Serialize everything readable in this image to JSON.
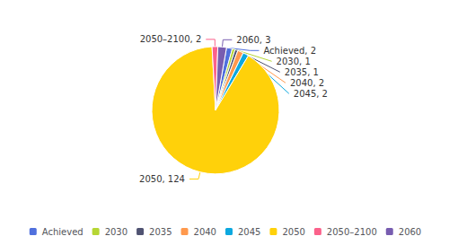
{
  "chart_data": {
    "type": "pie",
    "categories": [
      "Achieved",
      "2030",
      "2035",
      "2040",
      "2045",
      "2050",
      "2050–2100",
      "2060"
    ],
    "values": [
      2,
      1,
      1,
      2,
      2,
      124,
      2,
      3
    ],
    "value_labels": [
      "Achieved, 2",
      "2030, 1",
      "2035, 1",
      "2040, 2",
      "2045, 2",
      "2050, 124",
      "2050–2100, 2",
      "2060, 3"
    ],
    "data_labels": true,
    "legend": "bottom"
  }
}
